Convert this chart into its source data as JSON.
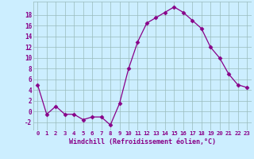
{
  "x": [
    0,
    1,
    2,
    3,
    4,
    5,
    6,
    7,
    8,
    9,
    10,
    11,
    12,
    13,
    14,
    15,
    16,
    17,
    18,
    19,
    20,
    21,
    22,
    23
  ],
  "y": [
    5.0,
    -0.5,
    1.0,
    -0.5,
    -0.5,
    -1.5,
    -1.0,
    -1.0,
    -2.5,
    1.5,
    8.0,
    13.0,
    16.5,
    17.5,
    18.5,
    19.5,
    18.5,
    17.0,
    15.5,
    12.0,
    10.0,
    7.0,
    5.0,
    4.5
  ],
  "line_color": "#880088",
  "marker": "D",
  "marker_size": 2.5,
  "bg_color": "#cceeff",
  "grid_color": "#99bbbb",
  "xlabel": "Windchill (Refroidissement éolien,°C)",
  "xlabel_color": "#880088",
  "tick_color": "#880088",
  "ylim": [
    -3.5,
    20.5
  ],
  "xlim": [
    -0.5,
    23.5
  ],
  "yticks": [
    -2,
    0,
    2,
    4,
    6,
    8,
    10,
    12,
    14,
    16,
    18
  ],
  "xtick_labels": [
    "0",
    "1",
    "2",
    "3",
    "4",
    "5",
    "6",
    "7",
    "8",
    "9",
    "10",
    "11",
    "12",
    "13",
    "14",
    "15",
    "16",
    "17",
    "18",
    "19",
    "20",
    "21",
    "22",
    "23"
  ]
}
